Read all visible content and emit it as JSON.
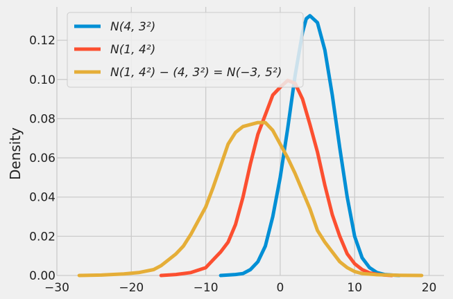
{
  "chart_data": {
    "type": "line",
    "title": "",
    "xlabel": "",
    "ylabel": "Density",
    "xlim": [
      -30,
      22
    ],
    "ylim": [
      0,
      0.137
    ],
    "xticks": [
      -30,
      -20,
      -10,
      0,
      10,
      20
    ],
    "xtick_labels": [
      "−30",
      "−20",
      "−10",
      "0",
      "10",
      "20"
    ],
    "yticks": [
      0.0,
      0.02,
      0.04,
      0.06,
      0.08,
      0.1,
      0.12
    ],
    "ytick_labels": [
      "0.00",
      "0.02",
      "0.04",
      "0.06",
      "0.08",
      "0.10",
      "0.12"
    ],
    "grid": true,
    "legend_position": "top-left",
    "series": [
      {
        "name": "N(4, 3²)",
        "color": "#008fd5",
        "points": [
          [
            -8,
            0
          ],
          [
            -6,
            0.0005
          ],
          [
            -5,
            0.001
          ],
          [
            -4,
            0.003
          ],
          [
            -3,
            0.007
          ],
          [
            -2,
            0.015
          ],
          [
            -1,
            0.03
          ],
          [
            0,
            0.05
          ],
          [
            1,
            0.075
          ],
          [
            2,
            0.102
          ],
          [
            3,
            0.124
          ],
          [
            3.5,
            0.131
          ],
          [
            4,
            0.1325
          ],
          [
            5,
            0.129
          ],
          [
            6,
            0.115
          ],
          [
            7,
            0.092
          ],
          [
            8,
            0.065
          ],
          [
            9,
            0.04
          ],
          [
            10,
            0.02
          ],
          [
            11,
            0.009
          ],
          [
            12,
            0.004
          ],
          [
            13,
            0.0015
          ],
          [
            14,
            0.0005
          ],
          [
            15,
            0.0002
          ],
          [
            16,
            0
          ]
        ]
      },
      {
        "name": "N(1, 4²)",
        "color": "#fc4f30",
        "points": [
          [
            -16,
            0
          ],
          [
            -14,
            0.0005
          ],
          [
            -12,
            0.0015
          ],
          [
            -10,
            0.004
          ],
          [
            -9,
            0.008
          ],
          [
            -8,
            0.012
          ],
          [
            -7,
            0.017
          ],
          [
            -6,
            0.026
          ],
          [
            -5,
            0.04
          ],
          [
            -4,
            0.057
          ],
          [
            -3,
            0.072
          ],
          [
            -2,
            0.082
          ],
          [
            -1,
            0.092
          ],
          [
            0,
            0.096
          ],
          [
            1,
            0.0995
          ],
          [
            2,
            0.098
          ],
          [
            3,
            0.09
          ],
          [
            4,
            0.077
          ],
          [
            5,
            0.063
          ],
          [
            6,
            0.046
          ],
          [
            7,
            0.031
          ],
          [
            8,
            0.02
          ],
          [
            9,
            0.011
          ],
          [
            10,
            0.006
          ],
          [
            11,
            0.003
          ],
          [
            12,
            0.0013
          ],
          [
            13,
            0.0006
          ],
          [
            14,
            0.0002
          ],
          [
            15,
            0
          ]
        ]
      },
      {
        "name": "N(1, 4²) − (4, 3²) = N(−3, 5²)",
        "color": "#e5ae38",
        "points": [
          [
            -27,
            0
          ],
          [
            -24,
            0.0002
          ],
          [
            -21,
            0.0008
          ],
          [
            -19,
            0.0015
          ],
          [
            -17,
            0.003
          ],
          [
            -16,
            0.005
          ],
          [
            -15,
            0.008
          ],
          [
            -14,
            0.011
          ],
          [
            -13,
            0.015
          ],
          [
            -12,
            0.021
          ],
          [
            -11,
            0.028
          ],
          [
            -10,
            0.035
          ],
          [
            -9,
            0.045
          ],
          [
            -8,
            0.056
          ],
          [
            -7,
            0.067
          ],
          [
            -6,
            0.073
          ],
          [
            -5,
            0.076
          ],
          [
            -4,
            0.077
          ],
          [
            -3,
            0.078
          ],
          [
            -2,
            0.078
          ],
          [
            -1,
            0.074
          ],
          [
            0,
            0.067
          ],
          [
            1,
            0.06
          ],
          [
            2,
            0.052
          ],
          [
            3,
            0.043
          ],
          [
            4,
            0.034
          ],
          [
            5,
            0.023
          ],
          [
            6,
            0.017
          ],
          [
            7,
            0.012
          ],
          [
            8,
            0.007
          ],
          [
            9,
            0.004
          ],
          [
            10,
            0.002
          ],
          [
            11,
            0.001
          ],
          [
            13,
            0.0004
          ],
          [
            16,
            0.0001
          ],
          [
            19,
            0
          ]
        ]
      }
    ]
  }
}
